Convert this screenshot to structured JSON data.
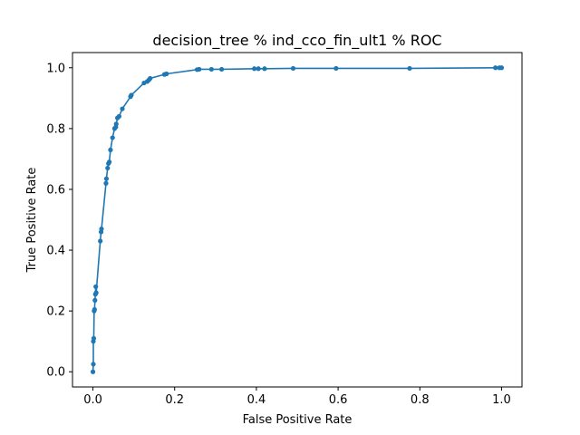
{
  "chart_data": {
    "type": "line",
    "title": "decision_tree % ind_cco_fin_ult1 % ROC",
    "xlabel": "False Positive Rate",
    "ylabel": "True Positive Rate",
    "xlim": [
      -0.05,
      1.05
    ],
    "ylim": [
      -0.05,
      1.05
    ],
    "xticks": [
      0.0,
      0.2,
      0.4,
      0.6,
      0.8,
      1.0
    ],
    "yticks": [
      0.0,
      0.2,
      0.4,
      0.6,
      0.8,
      1.0
    ],
    "xtick_labels": [
      "0.0",
      "0.2",
      "0.4",
      "0.6",
      "0.8",
      "1.0"
    ],
    "ytick_labels": [
      "0.0",
      "0.2",
      "0.4",
      "0.6",
      "0.8",
      "1.0"
    ],
    "grid": false,
    "markers": true,
    "color": "#1f77b4",
    "series": [
      {
        "x": [
          0.0,
          0.001,
          0.001,
          0.002,
          0.003,
          0.004,
          0.005,
          0.006,
          0.007,
          0.008,
          0.018,
          0.02,
          0.021,
          0.032,
          0.033,
          0.036,
          0.038,
          0.04,
          0.043,
          0.048,
          0.053,
          0.056,
          0.057,
          0.06,
          0.064,
          0.072,
          0.092,
          0.094,
          0.125,
          0.133,
          0.137,
          0.14,
          0.175,
          0.18,
          0.255,
          0.26,
          0.29,
          0.315,
          0.395,
          0.405,
          0.42,
          0.49,
          0.595,
          0.775,
          0.985,
          0.995,
          1.0
        ],
        "y": [
          0.0,
          0.025,
          0.1,
          0.11,
          0.2,
          0.205,
          0.235,
          0.255,
          0.28,
          0.26,
          0.43,
          0.46,
          0.47,
          0.62,
          0.635,
          0.67,
          0.685,
          0.69,
          0.73,
          0.77,
          0.8,
          0.805,
          0.815,
          0.835,
          0.84,
          0.865,
          0.905,
          0.91,
          0.95,
          0.955,
          0.96,
          0.965,
          0.978,
          0.98,
          0.994,
          0.995,
          0.995,
          0.995,
          0.997,
          0.997,
          0.997,
          0.998,
          0.998,
          0.998,
          1.0,
          1.0,
          1.0
        ]
      }
    ]
  }
}
